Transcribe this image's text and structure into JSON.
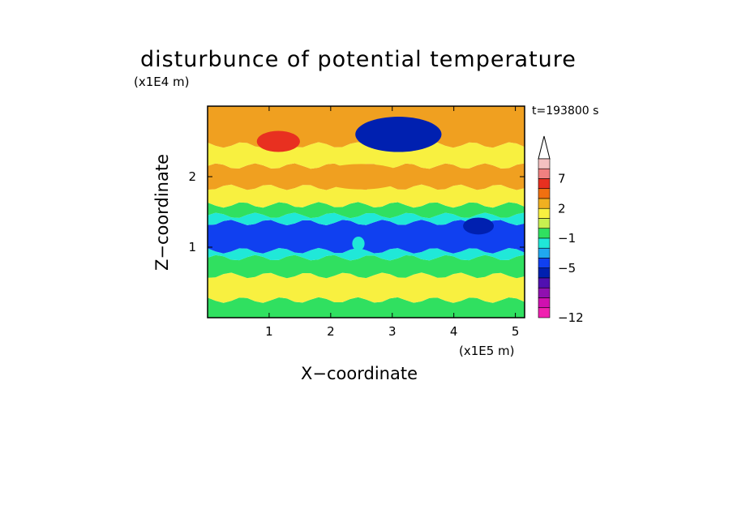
{
  "chart_data": {
    "type": "heatmap",
    "title": "disturbunce of potential temperature",
    "time_label": "t=193800 s",
    "xlabel": "X−coordinate",
    "ylabel": "Z−coordinate",
    "x_unit": "(x1E5 m)",
    "y_unit": "(x1E4 m)",
    "xlim": [
      0,
      5.15
    ],
    "ylim": [
      0,
      3.0
    ],
    "x_ticks": [
      "1",
      "2",
      "3",
      "4",
      "5"
    ],
    "y_ticks": [
      "1",
      "2"
    ],
    "colorbar": {
      "labels": [
        "7",
        "2",
        "−1",
        "−5",
        "−12"
      ],
      "colors": [
        "#f4c0c0",
        "#f08080",
        "#e83020",
        "#f07010",
        "#f0b020",
        "#f8f040",
        "#c8f050",
        "#30e060",
        "#20e8d8",
        "#20a8f0",
        "#1040f0",
        "#0020b0",
        "#5010b0",
        "#9010b0",
        "#d010b0",
        "#f020b0"
      ]
    },
    "bands": [
      {
        "z0": 0.0,
        "z1": 0.25,
        "level": "green"
      },
      {
        "z0": 0.25,
        "z1": 0.6,
        "level": "yellow"
      },
      {
        "z0": 0.6,
        "z1": 0.85,
        "level": "green"
      },
      {
        "z0": 0.85,
        "z1": 0.95,
        "level": "cyan"
      },
      {
        "z0": 0.95,
        "z1": 1.35,
        "level": "blue"
      },
      {
        "z0": 1.35,
        "z1": 1.45,
        "level": "cyan"
      },
      {
        "z0": 1.45,
        "z1": 1.6,
        "level": "green"
      },
      {
        "z0": 1.6,
        "z1": 1.85,
        "level": "yellow"
      },
      {
        "z0": 1.85,
        "z1": 2.15,
        "level": "orange"
      },
      {
        "z0": 2.15,
        "z1": 2.45,
        "level": "yellow"
      },
      {
        "z0": 2.45,
        "z1": 3.0,
        "level": "orange"
      }
    ],
    "features": [
      {
        "x": 3.1,
        "z": 2.6,
        "rx": 0.7,
        "rz": 0.25,
        "level": "darkblue"
      },
      {
        "x": 1.15,
        "z": 2.5,
        "rx": 0.35,
        "rz": 0.15,
        "level": "red"
      },
      {
        "x": 2.5,
        "z": 2.0,
        "rx": 0.7,
        "rz": 0.18,
        "level": "orange"
      },
      {
        "x": 4.4,
        "z": 1.3,
        "rx": 0.25,
        "rz": 0.12,
        "level": "darkblue"
      },
      {
        "x": 2.45,
        "z": 1.05,
        "rx": 0.1,
        "rz": 0.1,
        "level": "cyan"
      }
    ]
  },
  "level_colors": {
    "red": "#e83020",
    "orange": "#f0a020",
    "yellow": "#f8f040",
    "green": "#30e060",
    "cyan": "#20e8d8",
    "blue": "#1040f0",
    "darkblue": "#0020b0"
  }
}
